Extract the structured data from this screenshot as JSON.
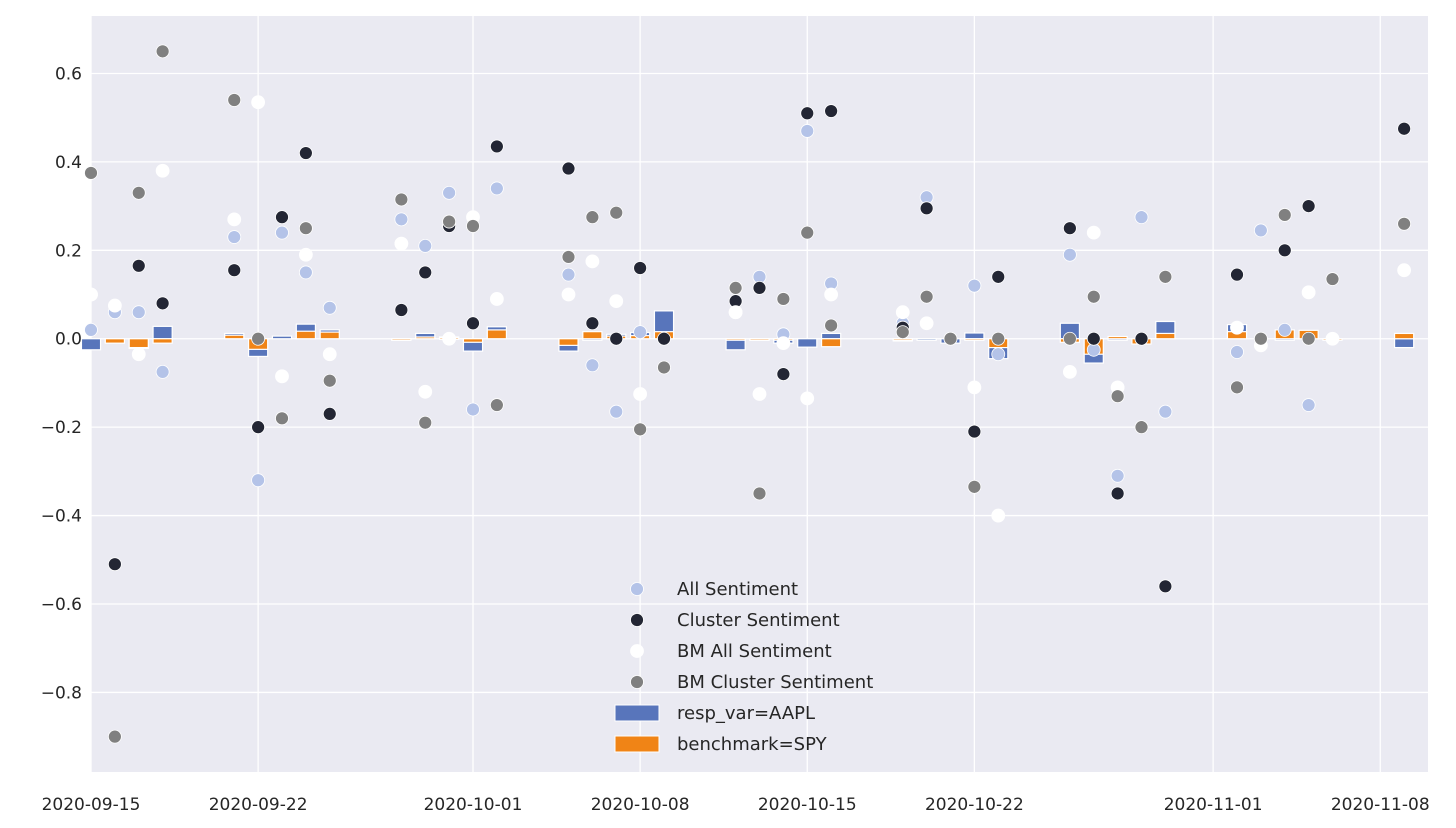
{
  "chart_data": {
    "type": "scatter",
    "x_type": "date",
    "xlim": [
      "2020-09-15",
      "2020-11-10"
    ],
    "ylim": [
      -0.98,
      0.73
    ],
    "xticks": [
      "2020-09-15",
      "2020-09-22",
      "2020-10-01",
      "2020-10-08",
      "2020-10-15",
      "2020-10-22",
      "2020-11-01",
      "2020-11-08"
    ],
    "xtick_labels": [
      "2020-09-15",
      "2020-09-22",
      "2020-10-01",
      "2020-10-08",
      "2020-10-15",
      "2020-10-22",
      "2020-11-01",
      "2020-11-08"
    ],
    "yticks": [
      -0.8,
      -0.6,
      -0.4,
      -0.2,
      0.0,
      0.2,
      0.4,
      0.6
    ],
    "ytick_labels": [
      "−0.8",
      "−0.6",
      "−0.4",
      "−0.2",
      "0.0",
      "0.2",
      "0.4",
      "0.6"
    ],
    "grid": true,
    "legend_position": "lower-center",
    "background_color": "#EAEAF2",
    "dates": [
      "2020-09-15",
      "2020-09-16",
      "2020-09-17",
      "2020-09-18",
      "2020-09-21",
      "2020-09-22",
      "2020-09-23",
      "2020-09-24",
      "2020-09-25",
      "2020-09-28",
      "2020-09-29",
      "2020-09-30",
      "2020-10-01",
      "2020-10-02",
      "2020-10-05",
      "2020-10-06",
      "2020-10-07",
      "2020-10-08",
      "2020-10-09",
      "2020-10-12",
      "2020-10-13",
      "2020-10-14",
      "2020-10-15",
      "2020-10-16",
      "2020-10-19",
      "2020-10-20",
      "2020-10-21",
      "2020-10-22",
      "2020-10-23",
      "2020-10-26",
      "2020-10-27",
      "2020-10-28",
      "2020-10-29",
      "2020-10-30",
      "2020-11-02",
      "2020-11-03",
      "2020-11-04",
      "2020-11-05",
      "2020-11-06",
      "2020-11-09"
    ],
    "scatter_series": [
      {
        "name": "All Sentiment",
        "color": "#B4C3E8",
        "values": [
          0.02,
          0.06,
          0.06,
          -0.075,
          0.23,
          -0.32,
          0.24,
          0.15,
          0.07,
          0.27,
          0.21,
          0.33,
          -0.16,
          0.34,
          0.145,
          -0.06,
          -0.165,
          0.015,
          null,
          0.06,
          0.14,
          0.01,
          0.47,
          0.125,
          0.035,
          0.32,
          null,
          0.12,
          -0.035,
          0.19,
          -0.025,
          -0.31,
          0.275,
          -0.165,
          -0.03,
          0.245,
          0.02,
          -0.15,
          null,
          null
        ]
      },
      {
        "name": "Cluster Sentiment",
        "color": "#232634",
        "values": [
          0.1,
          -0.51,
          0.165,
          0.08,
          0.155,
          -0.2,
          0.275,
          0.42,
          -0.17,
          0.065,
          0.15,
          0.255,
          0.035,
          0.435,
          0.385,
          0.035,
          0.0,
          0.16,
          0.0,
          0.085,
          0.115,
          -0.08,
          0.51,
          0.515,
          0.025,
          0.295,
          0.0,
          -0.21,
          0.14,
          0.25,
          0.0,
          -0.35,
          0.0,
          -0.56,
          0.145,
          0.0,
          0.2,
          0.3,
          null,
          0.475
        ]
      },
      {
        "name": "BM All Sentiment",
        "color": "#FFFFFF",
        "values": [
          0.1,
          0.075,
          -0.035,
          0.38,
          0.27,
          0.535,
          -0.085,
          0.19,
          -0.035,
          0.215,
          -0.12,
          0.0,
          0.275,
          0.09,
          0.1,
          0.175,
          0.085,
          -0.125,
          null,
          0.06,
          -0.125,
          -0.01,
          -0.135,
          0.1,
          0.06,
          0.035,
          null,
          -0.11,
          -0.4,
          -0.075,
          0.24,
          -0.11,
          null,
          null,
          0.025,
          -0.015,
          null,
          0.105,
          0.0,
          0.155
        ]
      },
      {
        "name": "BM Cluster Sentiment",
        "color": "#808080",
        "values": [
          0.375,
          -0.9,
          0.33,
          0.65,
          0.54,
          0.0,
          -0.18,
          0.25,
          -0.095,
          0.315,
          -0.19,
          0.265,
          0.255,
          -0.15,
          0.185,
          0.275,
          0.285,
          -0.205,
          -0.065,
          0.115,
          -0.35,
          0.09,
          0.24,
          0.03,
          0.015,
          0.095,
          0.0,
          -0.335,
          0.0,
          0.0,
          0.095,
          -0.13,
          -0.2,
          0.14,
          -0.11,
          0.0,
          0.28,
          0.0,
          0.135,
          0.26
        ]
      }
    ],
    "bar_series": [
      {
        "name": "resp_var=AAPL",
        "color": "#5875BB",
        "values": [
          -0.025,
          -0.008,
          -0.022,
          0.028,
          0.012,
          -0.04,
          0.006,
          0.033,
          0.02,
          0.0,
          0.012,
          0.004,
          -0.028,
          0.027,
          -0.028,
          0.0,
          0.01,
          0.014,
          0.063,
          -0.025,
          -0.003,
          -0.01,
          -0.019,
          0.012,
          -0.005,
          0.0,
          -0.01,
          0.013,
          -0.045,
          0.035,
          -0.055,
          0.0,
          0.0,
          0.039,
          0.032,
          null,
          0.0,
          null,
          null,
          -0.02
        ]
      },
      {
        "name": "benchmark=SPY",
        "color": "#F08416",
        "values": [
          null,
          -0.01,
          -0.02,
          -0.01,
          0.008,
          -0.024,
          null,
          0.017,
          0.015,
          0.0,
          0.004,
          0.002,
          -0.008,
          0.02,
          -0.015,
          0.016,
          0.006,
          0.007,
          0.016,
          0.0,
          -0.003,
          0.0,
          null,
          -0.018,
          0.0,
          null,
          null,
          0.0,
          -0.02,
          -0.008,
          -0.035,
          0.005,
          -0.012,
          0.012,
          0.016,
          null,
          0.02,
          0.019,
          0.0,
          0.012
        ]
      }
    ]
  }
}
